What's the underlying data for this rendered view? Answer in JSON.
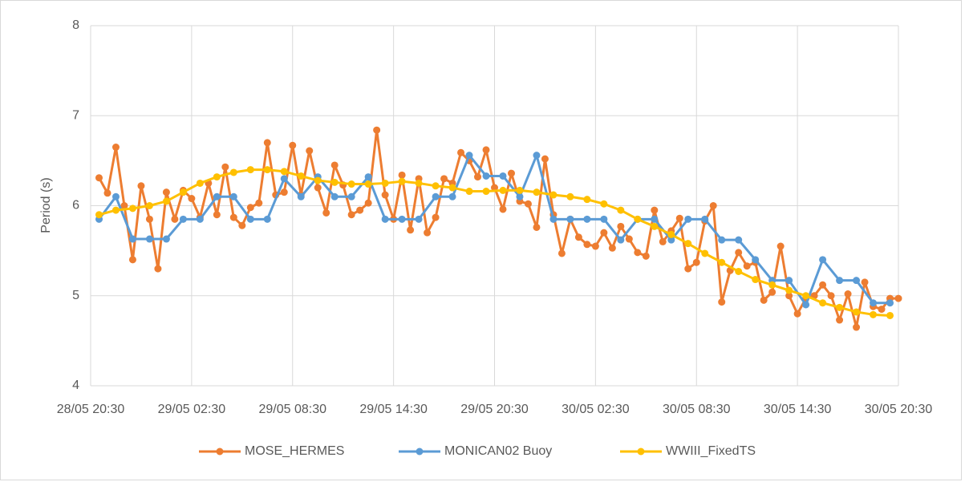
{
  "chart_data": {
    "type": "line",
    "ylabel": "Period (s)",
    "xlim": [
      0,
      48
    ],
    "xticks": [
      {
        "value": 0,
        "label": "28/05 20:30"
      },
      {
        "value": 6,
        "label": "29/05 02:30"
      },
      {
        "value": 12,
        "label": "29/05 08:30"
      },
      {
        "value": 18,
        "label": "29/05 14:30"
      },
      {
        "value": 24,
        "label": "29/05 20:30"
      },
      {
        "value": 30,
        "label": "30/05 02:30"
      },
      {
        "value": 36,
        "label": "30/05 08:30"
      },
      {
        "value": 42,
        "label": "30/05 14:30"
      },
      {
        "value": 48,
        "label": "30/05 20:30"
      }
    ],
    "ylim": [
      4,
      8
    ],
    "yticks": [
      4,
      5,
      6,
      7,
      8
    ],
    "grid": true,
    "legend": "bottom",
    "series": [
      {
        "name": "MOSE_HERMES",
        "color": "#ed7d31",
        "x": [
          0.5,
          1,
          1.5,
          2,
          2.5,
          3,
          3.5,
          4,
          4.5,
          5,
          5.5,
          6,
          6.5,
          7,
          7.5,
          8,
          8.5,
          9,
          9.5,
          10,
          10.5,
          11,
          11.5,
          12,
          12.5,
          13,
          13.5,
          14,
          14.5,
          15,
          15.5,
          16,
          16.5,
          17,
          17.5,
          18,
          18.5,
          19,
          19.5,
          20,
          20.5,
          21,
          21.5,
          22,
          22.5,
          23,
          23.5,
          24,
          24.5,
          25,
          25.5,
          26,
          26.5,
          27,
          27.5,
          28,
          28.5,
          29,
          29.5,
          30,
          30.5,
          31,
          31.5,
          32,
          32.5,
          33,
          33.5,
          34,
          34.5,
          35,
          35.5,
          36,
          36.5,
          37,
          37.5,
          38,
          38.5,
          39,
          39.5,
          40,
          40.5,
          41,
          41.5,
          42,
          42.5,
          43,
          43.5,
          44,
          44.5,
          45,
          45.5,
          46,
          46.5,
          47,
          47.5,
          48
        ],
        "values": [
          6.31,
          6.14,
          6.65,
          6.0,
          5.4,
          6.22,
          5.85,
          5.3,
          6.15,
          5.85,
          6.17,
          6.08,
          5.87,
          6.25,
          5.9,
          6.43,
          5.87,
          5.78,
          5.98,
          6.03,
          6.7,
          6.12,
          6.15,
          6.67,
          6.12,
          6.61,
          6.2,
          5.92,
          6.45,
          6.23,
          5.9,
          5.95,
          6.03,
          6.84,
          6.12,
          5.85,
          6.34,
          5.73,
          6.3,
          5.7,
          5.87,
          6.3,
          6.25,
          6.59,
          6.5,
          6.32,
          6.62,
          6.2,
          5.96,
          6.36,
          6.05,
          6.02,
          5.76,
          6.52,
          5.9,
          5.47,
          5.85,
          5.65,
          5.57,
          5.55,
          5.7,
          5.53,
          5.77,
          5.63,
          5.48,
          5.44,
          5.95,
          5.6,
          5.72,
          5.86,
          5.3,
          5.37,
          5.83,
          6.0,
          4.93,
          5.28,
          5.48,
          5.33,
          5.37,
          4.95,
          5.04,
          5.55,
          5.0,
          4.8,
          4.97,
          5.0,
          5.12,
          5.0,
          4.73,
          5.02,
          4.65,
          5.15,
          4.88,
          4.85,
          4.97,
          4.97
        ]
      },
      {
        "name": "MONICAN02 Buoy",
        "color": "#5b9bd5",
        "x": [
          0.5,
          1.5,
          2.5,
          3.5,
          4.5,
          5.5,
          6.5,
          7.5,
          8.5,
          9.5,
          10.5,
          11.5,
          12.5,
          13.5,
          14.5,
          15.5,
          16.5,
          17.5,
          18.5,
          19.5,
          20.5,
          21.5,
          22.5,
          23.5,
          24.5,
          25.5,
          26.5,
          27.5,
          28.5,
          29.5,
          30.5,
          31.5,
          32.5,
          33.5,
          34.5,
          35.5,
          36.5,
          37.5,
          38.5,
          39.5,
          40.5,
          41.5,
          42.5,
          43.5,
          44.5,
          45.5,
          46.5,
          47.5
        ],
        "values": [
          5.85,
          6.1,
          5.63,
          5.63,
          5.63,
          5.85,
          5.85,
          6.1,
          6.1,
          5.85,
          5.85,
          6.3,
          6.1,
          6.32,
          6.1,
          6.1,
          6.32,
          5.85,
          5.85,
          5.85,
          6.1,
          6.1,
          6.56,
          6.33,
          6.33,
          6.1,
          6.56,
          5.85,
          5.85,
          5.85,
          5.85,
          5.62,
          5.85,
          5.85,
          5.62,
          5.85,
          5.85,
          5.62,
          5.62,
          5.4,
          5.17,
          5.17,
          4.9,
          5.4,
          5.17,
          5.17,
          4.92,
          4.92
        ]
      },
      {
        "name": "WWIII_FixedTS",
        "color": "#ffc000",
        "x": [
          0.5,
          1.5,
          2.5,
          3.5,
          4.5,
          5.5,
          6.5,
          7.5,
          8.5,
          9.5,
          10.5,
          11.5,
          12.5,
          13.5,
          14.5,
          15.5,
          16.5,
          17.5,
          18.5,
          19.5,
          20.5,
          21.5,
          22.5,
          23.5,
          24.5,
          25.5,
          26.5,
          27.5,
          28.5,
          29.5,
          30.5,
          31.5,
          32.5,
          33.5,
          34.5,
          35.5,
          36.5,
          37.5,
          38.5,
          39.5,
          40.5,
          41.5,
          42.5,
          43.5,
          44.5,
          45.5,
          46.5,
          47.5
        ],
        "values": [
          5.9,
          5.95,
          5.97,
          6.0,
          6.05,
          6.15,
          6.25,
          6.32,
          6.37,
          6.4,
          6.4,
          6.38,
          6.33,
          6.28,
          6.26,
          6.24,
          6.24,
          6.25,
          6.27,
          6.25,
          6.22,
          6.2,
          6.16,
          6.16,
          6.17,
          6.17,
          6.15,
          6.12,
          6.1,
          6.07,
          6.02,
          5.95,
          5.85,
          5.77,
          5.68,
          5.58,
          5.47,
          5.37,
          5.27,
          5.18,
          5.12,
          5.06,
          5.0,
          4.92,
          4.87,
          4.82,
          4.79,
          4.78
        ]
      }
    ]
  }
}
